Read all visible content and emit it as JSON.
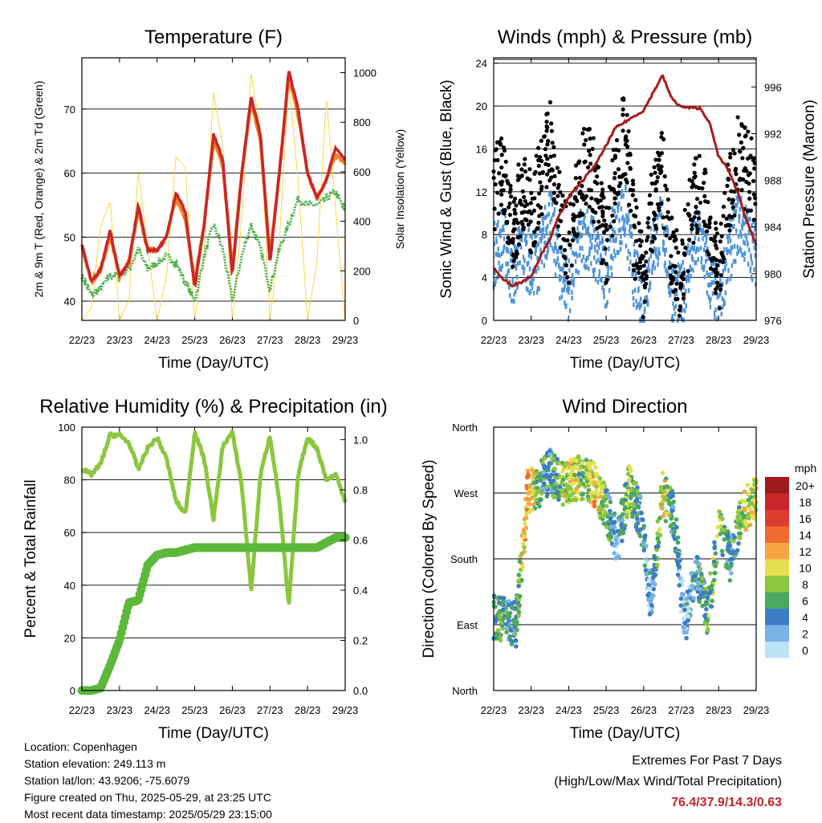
{
  "colors": {
    "temp_red": "#c8262a",
    "temp_orange": "#f5821f",
    "dewpoint_green": "#4daf4a",
    "solar_yellow": "#f8d84a",
    "wind_blue": "#4d93d9",
    "gust_black": "#000000",
    "pressure_maroon": "#a51c1c",
    "rh_lightgreen": "#8cc63f",
    "precip_green": "#5cb83a",
    "extremes_red": "#c0272d"
  },
  "time_ticks": [
    "22/23",
    "23/23",
    "24/23",
    "25/23",
    "26/23",
    "27/23",
    "28/23",
    "29/23"
  ],
  "chart_data": [
    {
      "id": "temperature",
      "type": "line",
      "title": "Temperature (F)",
      "xlabel": "Time (Day/UTC)",
      "ylabel": "2m & 9m T (Red, Orange) & 2m Td (Green)",
      "y2label": "Solar Insolation (Yellow)",
      "ylim": [
        37,
        78
      ],
      "y2lim": [
        0,
        1060
      ],
      "yticks": [
        40,
        50,
        60,
        70
      ],
      "y2ticks": [
        0,
        200,
        400,
        600,
        800,
        1000
      ],
      "grid": true,
      "x": [
        0,
        0.25,
        0.5,
        0.75,
        1.0,
        1.25,
        1.5,
        1.75,
        2.0,
        2.25,
        2.5,
        2.75,
        3.0,
        3.25,
        3.5,
        3.75,
        4.0,
        4.25,
        4.5,
        4.75,
        5.0,
        5.25,
        5.5,
        5.75,
        6.0,
        6.25,
        6.5,
        6.75,
        7.0
      ],
      "series": [
        {
          "name": "2m T",
          "values": [
            49,
            43,
            45,
            51,
            44,
            46,
            55,
            48,
            48,
            50,
            57,
            54,
            42,
            52,
            66,
            62,
            44,
            60,
            72,
            66,
            46,
            60,
            76,
            70,
            60,
            56,
            59,
            64,
            62
          ]
        },
        {
          "name": "9m T",
          "values": [
            48.5,
            43,
            45,
            50,
            44,
            46,
            54,
            48,
            48,
            50,
            56,
            53,
            43,
            52,
            65,
            61,
            45,
            60,
            71,
            65,
            47,
            60,
            75,
            69,
            60,
            56,
            59,
            63,
            61.5
          ]
        },
        {
          "name": "2m Td",
          "values": [
            44,
            41,
            42,
            44,
            44,
            45,
            48,
            45,
            46,
            47,
            46,
            43,
            40,
            47,
            52,
            48,
            40,
            47,
            52,
            48,
            42,
            48,
            52,
            56,
            55,
            55,
            56,
            57,
            54
          ]
        },
        {
          "name": "Solar",
          "values": [
            0,
            50,
            380,
            480,
            0,
            80,
            600,
            300,
            0,
            180,
            660,
            620,
            0,
            280,
            920,
            700,
            0,
            400,
            1000,
            760,
            0,
            320,
            960,
            560,
            0,
            240,
            900,
            440,
            0
          ]
        }
      ]
    },
    {
      "id": "winds",
      "type": "scatter",
      "title": "Winds (mph) & Pressure (mb)",
      "xlabel": "Time (Day/UTC)",
      "ylabel": "Sonic Wind & Gust (Blue, Black)",
      "y2label": "Station Pressure (Maroon)",
      "ylim": [
        0,
        24.5
      ],
      "y2lim": [
        976,
        998.5
      ],
      "yticks": [
        0,
        4,
        8,
        12,
        16,
        20,
        24
      ],
      "y2ticks": [
        976,
        980,
        984,
        988,
        992,
        996
      ],
      "grid": true,
      "x": [
        0,
        0.25,
        0.5,
        0.75,
        1.0,
        1.25,
        1.5,
        1.75,
        2.0,
        2.25,
        2.5,
        2.75,
        3.0,
        3.25,
        3.5,
        3.75,
        4.0,
        4.25,
        4.5,
        4.75,
        5.0,
        5.25,
        5.5,
        5.75,
        6.0,
        6.25,
        6.5,
        6.75,
        7.0
      ],
      "series": [
        {
          "name": "Sonic Wind",
          "values": [
            6,
            8,
            4,
            7,
            5,
            6,
            10,
            5,
            3,
            7,
            8,
            6,
            4,
            9,
            10,
            4,
            2,
            7,
            9,
            3,
            2,
            6,
            8,
            4,
            2,
            6,
            9,
            8,
            6
          ]
        },
        {
          "name": "Gust",
          "values": [
            12,
            14,
            8,
            12,
            10,
            13,
            17,
            10,
            7,
            12,
            15,
            12,
            7,
            14,
            18,
            8,
            4,
            11,
            14,
            6,
            4,
            10,
            13,
            8,
            4,
            11,
            15,
            14,
            13
          ]
        },
        {
          "name": "Pressure",
          "values": [
            980.5,
            979.5,
            979.0,
            979.3,
            979.8,
            981.5,
            983.0,
            985.0,
            986.5,
            987.5,
            988.5,
            989.5,
            991.0,
            992.5,
            993.0,
            993.5,
            994.0,
            995.5,
            997.0,
            995.0,
            994.3,
            994.2,
            994.2,
            993.0,
            990.0,
            989.0,
            987.0,
            984.5,
            982.5
          ]
        }
      ]
    },
    {
      "id": "humidity",
      "type": "line",
      "title": "Relative Humidity (%) & Precipitation (in)",
      "xlabel": "Time (Day/UTC)",
      "ylabel": "Percent & Total Rainfall",
      "ylim": [
        0,
        100
      ],
      "y2lim": [
        0,
        1.05
      ],
      "yticks": [
        0,
        20,
        40,
        60,
        80,
        100
      ],
      "y2ticks": [
        "0.0",
        "0.2",
        "0.4",
        "0.6",
        "0.8",
        "1.0"
      ],
      "grid": true,
      "x": [
        0,
        0.25,
        0.5,
        0.75,
        1.0,
        1.25,
        1.5,
        1.75,
        2.0,
        2.25,
        2.5,
        2.75,
        3.0,
        3.25,
        3.5,
        3.75,
        4.0,
        4.25,
        4.5,
        4.75,
        5.0,
        5.25,
        5.5,
        5.75,
        6.0,
        6.25,
        6.5,
        6.75,
        7.0
      ],
      "series": [
        {
          "name": "Relative Humidity",
          "values": [
            84,
            82,
            86,
            97,
            97,
            94,
            84,
            92,
            96,
            88,
            72,
            67,
            98,
            88,
            65,
            93,
            98,
            78,
            38,
            82,
            97,
            72,
            32,
            82,
            96,
            92,
            80,
            82,
            72
          ]
        },
        {
          "name": "Total Precipitation",
          "values": [
            0,
            0,
            0.01,
            0.1,
            0.2,
            0.35,
            0.36,
            0.5,
            0.54,
            0.55,
            0.55,
            0.56,
            0.57,
            0.57,
            0.57,
            0.57,
            0.57,
            0.57,
            0.57,
            0.57,
            0.57,
            0.57,
            0.57,
            0.57,
            0.57,
            0.57,
            0.59,
            0.61,
            0.61
          ]
        }
      ]
    },
    {
      "id": "wind_direction",
      "type": "scatter",
      "title": "Wind Direction",
      "xlabel": "Time (Day/UTC)",
      "ylabel": "Direction (Colored By Speed)",
      "yticks": [
        "North",
        "East",
        "South",
        "West",
        "North"
      ],
      "ylim": [
        0,
        360
      ],
      "x": [
        0.1,
        0.35,
        0.6,
        0.9,
        1.2,
        1.5,
        1.8,
        2.1,
        2.4,
        2.7,
        3.0,
        3.3,
        3.6,
        3.9,
        4.2,
        4.5,
        4.8,
        5.1,
        5.4,
        5.7,
        6.0,
        6.3,
        6.6,
        6.9
      ],
      "directions": [
        100,
        95,
        90,
        270,
        280,
        300,
        280,
        290,
        290,
        280,
        250,
        200,
        280,
        240,
        120,
        270,
        240,
        90,
        170,
        100,
        220,
        180,
        240,
        260
      ],
      "speeds": [
        6,
        4,
        6,
        12,
        6,
        4,
        8,
        10,
        6,
        12,
        6,
        2,
        8,
        4,
        2,
        10,
        4,
        2,
        4,
        6,
        8,
        4,
        8,
        10
      ],
      "legend": {
        "title": "mph",
        "labels": [
          "20+",
          "18",
          "16",
          "14",
          "12",
          "10",
          "8",
          "6",
          "4",
          "2",
          "0"
        ],
        "colors": [
          "#9e1a1d",
          "#c8262a",
          "#de3c2e",
          "#f16a2f",
          "#f8a543",
          "#e4e04f",
          "#8cc63f",
          "#4aa860",
          "#3c7dc4",
          "#7ab3e6",
          "#bfe3f7"
        ]
      }
    }
  ],
  "info": {
    "location": "Location: Copenhagen",
    "elevation": "Station elevation: 249.113 m",
    "latlon": "Station lat/lon: 43.9206; -75.6079",
    "created": "Figure created on Thu, 2025-05-29, at 23:25 UTC",
    "recent": "Most recent data timestamp: 2025/05/29 23:15:00"
  },
  "extremes": {
    "title": "Extremes For Past 7 Days",
    "subtitle": "(High/Low/Max Wind/Total Precipitation)",
    "values": "76.4/37.9/14.3/0.63"
  }
}
